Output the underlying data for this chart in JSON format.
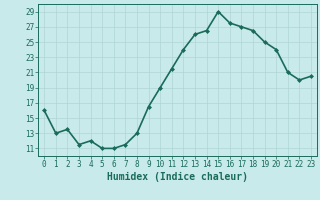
{
  "x": [
    0,
    1,
    2,
    3,
    4,
    5,
    6,
    7,
    8,
    9,
    10,
    11,
    12,
    13,
    14,
    15,
    16,
    17,
    18,
    19,
    20,
    21,
    22,
    23
  ],
  "y": [
    16,
    13,
    13.5,
    11.5,
    12,
    11,
    11,
    11.5,
    13,
    16.5,
    19,
    21.5,
    24,
    26,
    26.5,
    29,
    27.5,
    27,
    26.5,
    25,
    24,
    21,
    20,
    20.5
  ],
  "line_color": "#1a6b5a",
  "marker": "D",
  "marker_size": 2.0,
  "bg_color": "#c8eaea",
  "grid_color": "#b0d4d4",
  "xlabel": "Humidex (Indice chaleur)",
  "xlim": [
    -0.5,
    23.5
  ],
  "ylim": [
    10,
    30
  ],
  "yticks": [
    11,
    13,
    15,
    17,
    19,
    21,
    23,
    25,
    27,
    29
  ],
  "xticks": [
    0,
    1,
    2,
    3,
    4,
    5,
    6,
    7,
    8,
    9,
    10,
    11,
    12,
    13,
    14,
    15,
    16,
    17,
    18,
    19,
    20,
    21,
    22,
    23
  ],
  "tick_label_fontsize": 5.5,
  "xlabel_fontsize": 7.0,
  "linewidth": 1.2
}
